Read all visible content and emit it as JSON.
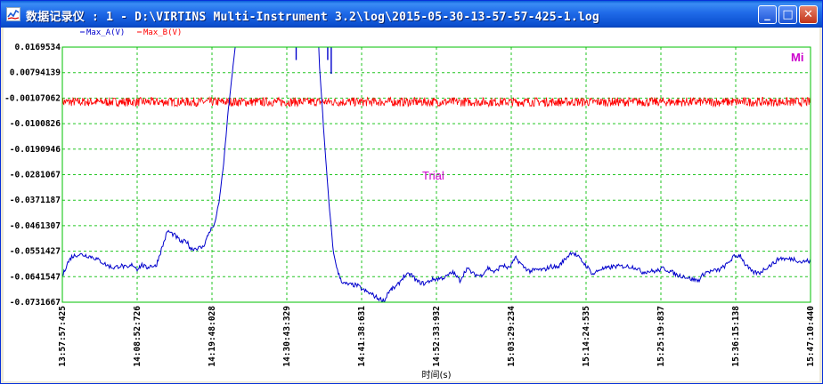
{
  "window": {
    "title": "数据记录仪 : 1 - D:\\VIRTINS Multi-Instrument 3.2\\log\\2015-05-30-13-57-57-425-1.log",
    "minimize_label": "_",
    "maximize_label": "□",
    "close_label": "✕",
    "icon": "chart-app-icon"
  },
  "chart_data": {
    "type": "line",
    "legend_placement": "top-left",
    "grid": true,
    "grid_style": "dashed",
    "colors": {
      "plot_border": "#00C000",
      "grid": "#22C622",
      "series_a": "#0000CC",
      "series_b": "#FF0000",
      "watermark": "#CC00CC"
    },
    "series": [
      {
        "name": "Max_A(V)",
        "color": "#0000CC"
      },
      {
        "name": "Max_B(V)",
        "color": "#FF0000"
      }
    ],
    "y_ticks": [
      "0.0169534",
      "0.00794139",
      "-0.00107062",
      "-0.0100826",
      "-0.0190946",
      "-0.0281067",
      "-0.0371187",
      "-0.0461307",
      "-0.0551427",
      "-0.0641547",
      "-0.0731667"
    ],
    "ylim": [
      -0.0731667,
      0.0169534
    ],
    "x_ticks": [
      "13:57:57:425",
      "14:08:52:726",
      "14:19:48:028",
      "14:30:43:329",
      "14:41:38:631",
      "14:52:33:932",
      "15:03:29:234",
      "15:14:24:535",
      "15:25:19:837",
      "15:36:15:138",
      "15:47:10:440"
    ],
    "xlabel": "时间(s)",
    "ylabel": "",
    "annotations": {
      "center": "Trial",
      "corner": "Mi"
    },
    "series_a_points": [
      [
        0,
        -0.0641
      ],
      [
        0.2,
        -0.0596
      ],
      [
        0.4,
        -0.0571
      ],
      [
        0.7,
        -0.0562
      ],
      [
        1.0,
        -0.0566
      ],
      [
        1.3,
        -0.0572
      ],
      [
        1.6,
        -0.0585
      ],
      [
        1.9,
        -0.0601
      ],
      [
        2.2,
        -0.061
      ],
      [
        2.5,
        -0.0602
      ],
      [
        2.8,
        -0.0612
      ],
      [
        3.0,
        -0.0598
      ],
      [
        3.2,
        -0.0614
      ],
      [
        3.4,
        -0.06
      ],
      [
        3.6,
        -0.061
      ],
      [
        3.8,
        -0.0602
      ],
      [
        4.0,
        -0.0605
      ],
      [
        4.1,
        -0.0579
      ],
      [
        4.3,
        -0.053
      ],
      [
        4.5,
        -0.048
      ],
      [
        4.8,
        -0.0495
      ],
      [
        5.1,
        -0.052
      ],
      [
        5.3,
        -0.0515
      ],
      [
        5.5,
        -0.0543
      ],
      [
        5.8,
        -0.054
      ],
      [
        6.0,
        -0.0538
      ],
      [
        6.1,
        -0.0522
      ],
      [
        6.3,
        -0.048
      ],
      [
        6.5,
        -0.0459
      ],
      [
        6.7,
        -0.038
      ],
      [
        6.9,
        -0.024
      ],
      [
        7.1,
        -0.005
      ],
      [
        7.3,
        0.01
      ],
      [
        7.5,
        0.025
      ],
      [
        7.6,
        0.03
      ],
      [
        7.7,
        0.03
      ],
      [
        10.9,
        0.03
      ],
      [
        11.0,
        0.01
      ],
      [
        11.2,
        -0.015
      ],
      [
        11.4,
        -0.038
      ],
      [
        11.6,
        -0.056
      ],
      [
        11.8,
        -0.063
      ],
      [
        12.0,
        -0.0665
      ],
      [
        12.3,
        -0.067
      ],
      [
        12.6,
        -0.0672
      ],
      [
        12.9,
        -0.069
      ],
      [
        13.2,
        -0.0702
      ],
      [
        13.5,
        -0.0718
      ],
      [
        13.8,
        -0.0726
      ],
      [
        13.9,
        -0.07
      ],
      [
        14.1,
        -0.0685
      ],
      [
        14.3,
        -0.0676
      ],
      [
        14.6,
        -0.064
      ],
      [
        14.9,
        -0.0633
      ],
      [
        15.2,
        -0.066
      ],
      [
        15.5,
        -0.0666
      ],
      [
        15.8,
        -0.0652
      ],
      [
        16.1,
        -0.0648
      ],
      [
        16.4,
        -0.0643
      ],
      [
        16.7,
        -0.0625
      ],
      [
        17.0,
        -0.0655
      ],
      [
        17.3,
        -0.0612
      ],
      [
        17.6,
        -0.0633
      ],
      [
        17.9,
        -0.0638
      ],
      [
        18.2,
        -0.061
      ],
      [
        18.5,
        -0.0626
      ],
      [
        18.8,
        -0.06
      ],
      [
        19.1,
        -0.0612
      ],
      [
        19.4,
        -0.0575
      ],
      [
        19.7,
        -0.0605
      ],
      [
        20.0,
        -0.0622
      ],
      [
        20.3,
        -0.0617
      ],
      [
        20.6,
        -0.0617
      ],
      [
        20.9,
        -0.0605
      ],
      [
        21.2,
        -0.0608
      ],
      [
        21.5,
        -0.0579
      ],
      [
        21.8,
        -0.0553
      ],
      [
        22.1,
        -0.0575
      ],
      [
        22.4,
        -0.0602
      ],
      [
        22.7,
        -0.0633
      ],
      [
        23.0,
        -0.0615
      ],
      [
        23.3,
        -0.0612
      ],
      [
        23.6,
        -0.0605
      ],
      [
        23.9,
        -0.0605
      ],
      [
        24.2,
        -0.0605
      ],
      [
        24.5,
        -0.0608
      ],
      [
        24.8,
        -0.0625
      ],
      [
        25.1,
        -0.0622
      ],
      [
        25.4,
        -0.0622
      ],
      [
        25.7,
        -0.0612
      ],
      [
        26.0,
        -0.0622
      ],
      [
        26.3,
        -0.0636
      ],
      [
        26.6,
        -0.064
      ],
      [
        26.9,
        -0.065
      ],
      [
        27.2,
        -0.0655
      ],
      [
        27.5,
        -0.0626
      ],
      [
        27.8,
        -0.0622
      ],
      [
        28.1,
        -0.0617
      ],
      [
        28.4,
        -0.06
      ],
      [
        28.7,
        -0.0572
      ],
      [
        29.0,
        -0.0565
      ],
      [
        29.2,
        -0.0597
      ],
      [
        29.5,
        -0.0625
      ],
      [
        29.8,
        -0.0629
      ],
      [
        30.1,
        -0.061
      ],
      [
        30.4,
        -0.0595
      ],
      [
        30.7,
        -0.0575
      ],
      [
        31.0,
        -0.058
      ],
      [
        31.3,
        -0.0578
      ],
      [
        31.6,
        -0.059
      ],
      [
        31.9,
        -0.0585
      ],
      [
        32.0,
        -0.0593
      ]
    ],
    "series_a_spikes": [
      [
        10.0,
        0.0124
      ],
      [
        11.35,
        0.0124
      ],
      [
        11.5,
        0.0075
      ]
    ],
    "series_b_level": -0.0024,
    "series_b_band": 0.0016
  }
}
